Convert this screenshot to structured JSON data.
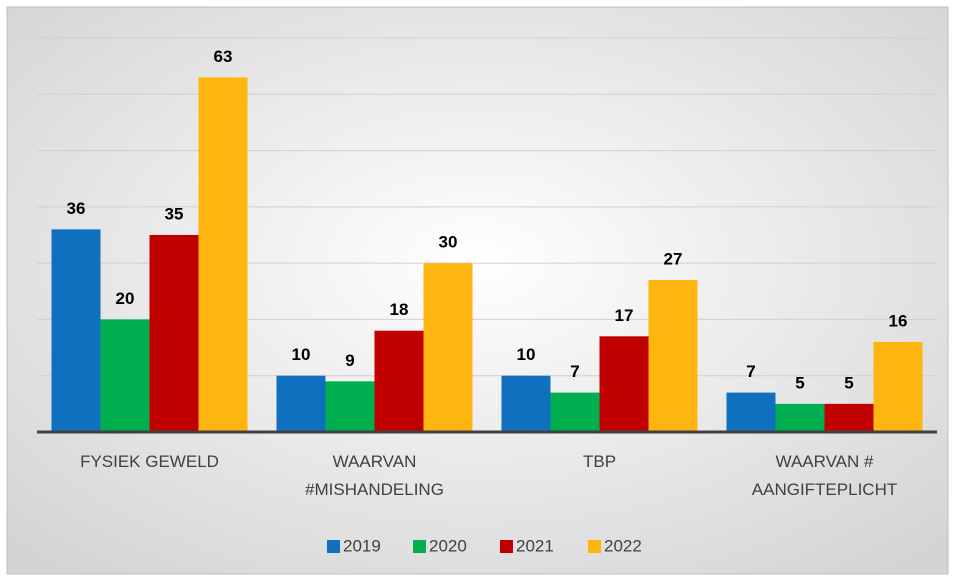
{
  "chart_data": {
    "type": "bar",
    "categories": [
      "FYSIEK GEWELD",
      "WAARVAN\n#MISHANDELING",
      "TBP",
      "WAARVAN #\nAANGIFTEPLICHT"
    ],
    "series": [
      {
        "name": "2019",
        "color": "#0f70c0",
        "values": [
          36,
          10,
          10,
          7
        ]
      },
      {
        "name": "2020",
        "color": "#00b050",
        "values": [
          20,
          9,
          7,
          5
        ]
      },
      {
        "name": "2021",
        "color": "#c00000",
        "values": [
          35,
          18,
          17,
          5
        ]
      },
      {
        "name": "2022",
        "color": "#ffb50f",
        "values": [
          63,
          30,
          27,
          16
        ]
      }
    ],
    "ylim": [
      0,
      70
    ],
    "yticks": [
      0,
      10,
      20,
      30,
      40,
      50,
      60,
      70
    ],
    "grid": true,
    "legend": "bottom"
  }
}
